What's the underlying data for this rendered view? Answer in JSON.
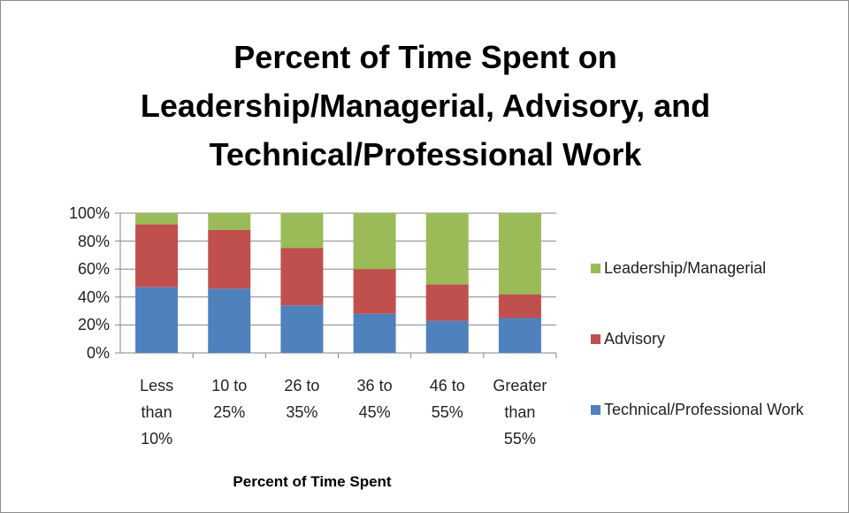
{
  "chart_data": {
    "type": "stacked_bar",
    "title": "Percent of Time Spent on Leadership/Managerial, Advisory, and Technical/Professional Work",
    "x_label": "Percent of Time Spent",
    "categories": [
      "Less than 10%",
      "10 to 25%",
      "26 to 35%",
      "36 to 45%",
      "46 to 55%",
      "Greater than 55%"
    ],
    "series": [
      {
        "name": "Technical/Professional Work",
        "color": "#4f81bd",
        "values": [
          47,
          46,
          34,
          28,
          23,
          25
        ]
      },
      {
        "name": "Advisory",
        "color": "#c0504d",
        "values": [
          45,
          42,
          41,
          32,
          26,
          17
        ]
      },
      {
        "name": "Leadership/Managerial",
        "color": "#9bbb59",
        "values": [
          8,
          12,
          25,
          40,
          51,
          58
        ]
      }
    ],
    "ylim": [
      0,
      100
    ],
    "yticks": [
      {
        "value": 0,
        "label": "0%"
      },
      {
        "value": 20,
        "label": "20%"
      },
      {
        "value": 40,
        "label": "40%"
      },
      {
        "value": 60,
        "label": "60%"
      },
      {
        "value": 80,
        "label": "80%"
      },
      {
        "value": 100,
        "label": "100%"
      }
    ],
    "grid": true,
    "legend": "right"
  }
}
